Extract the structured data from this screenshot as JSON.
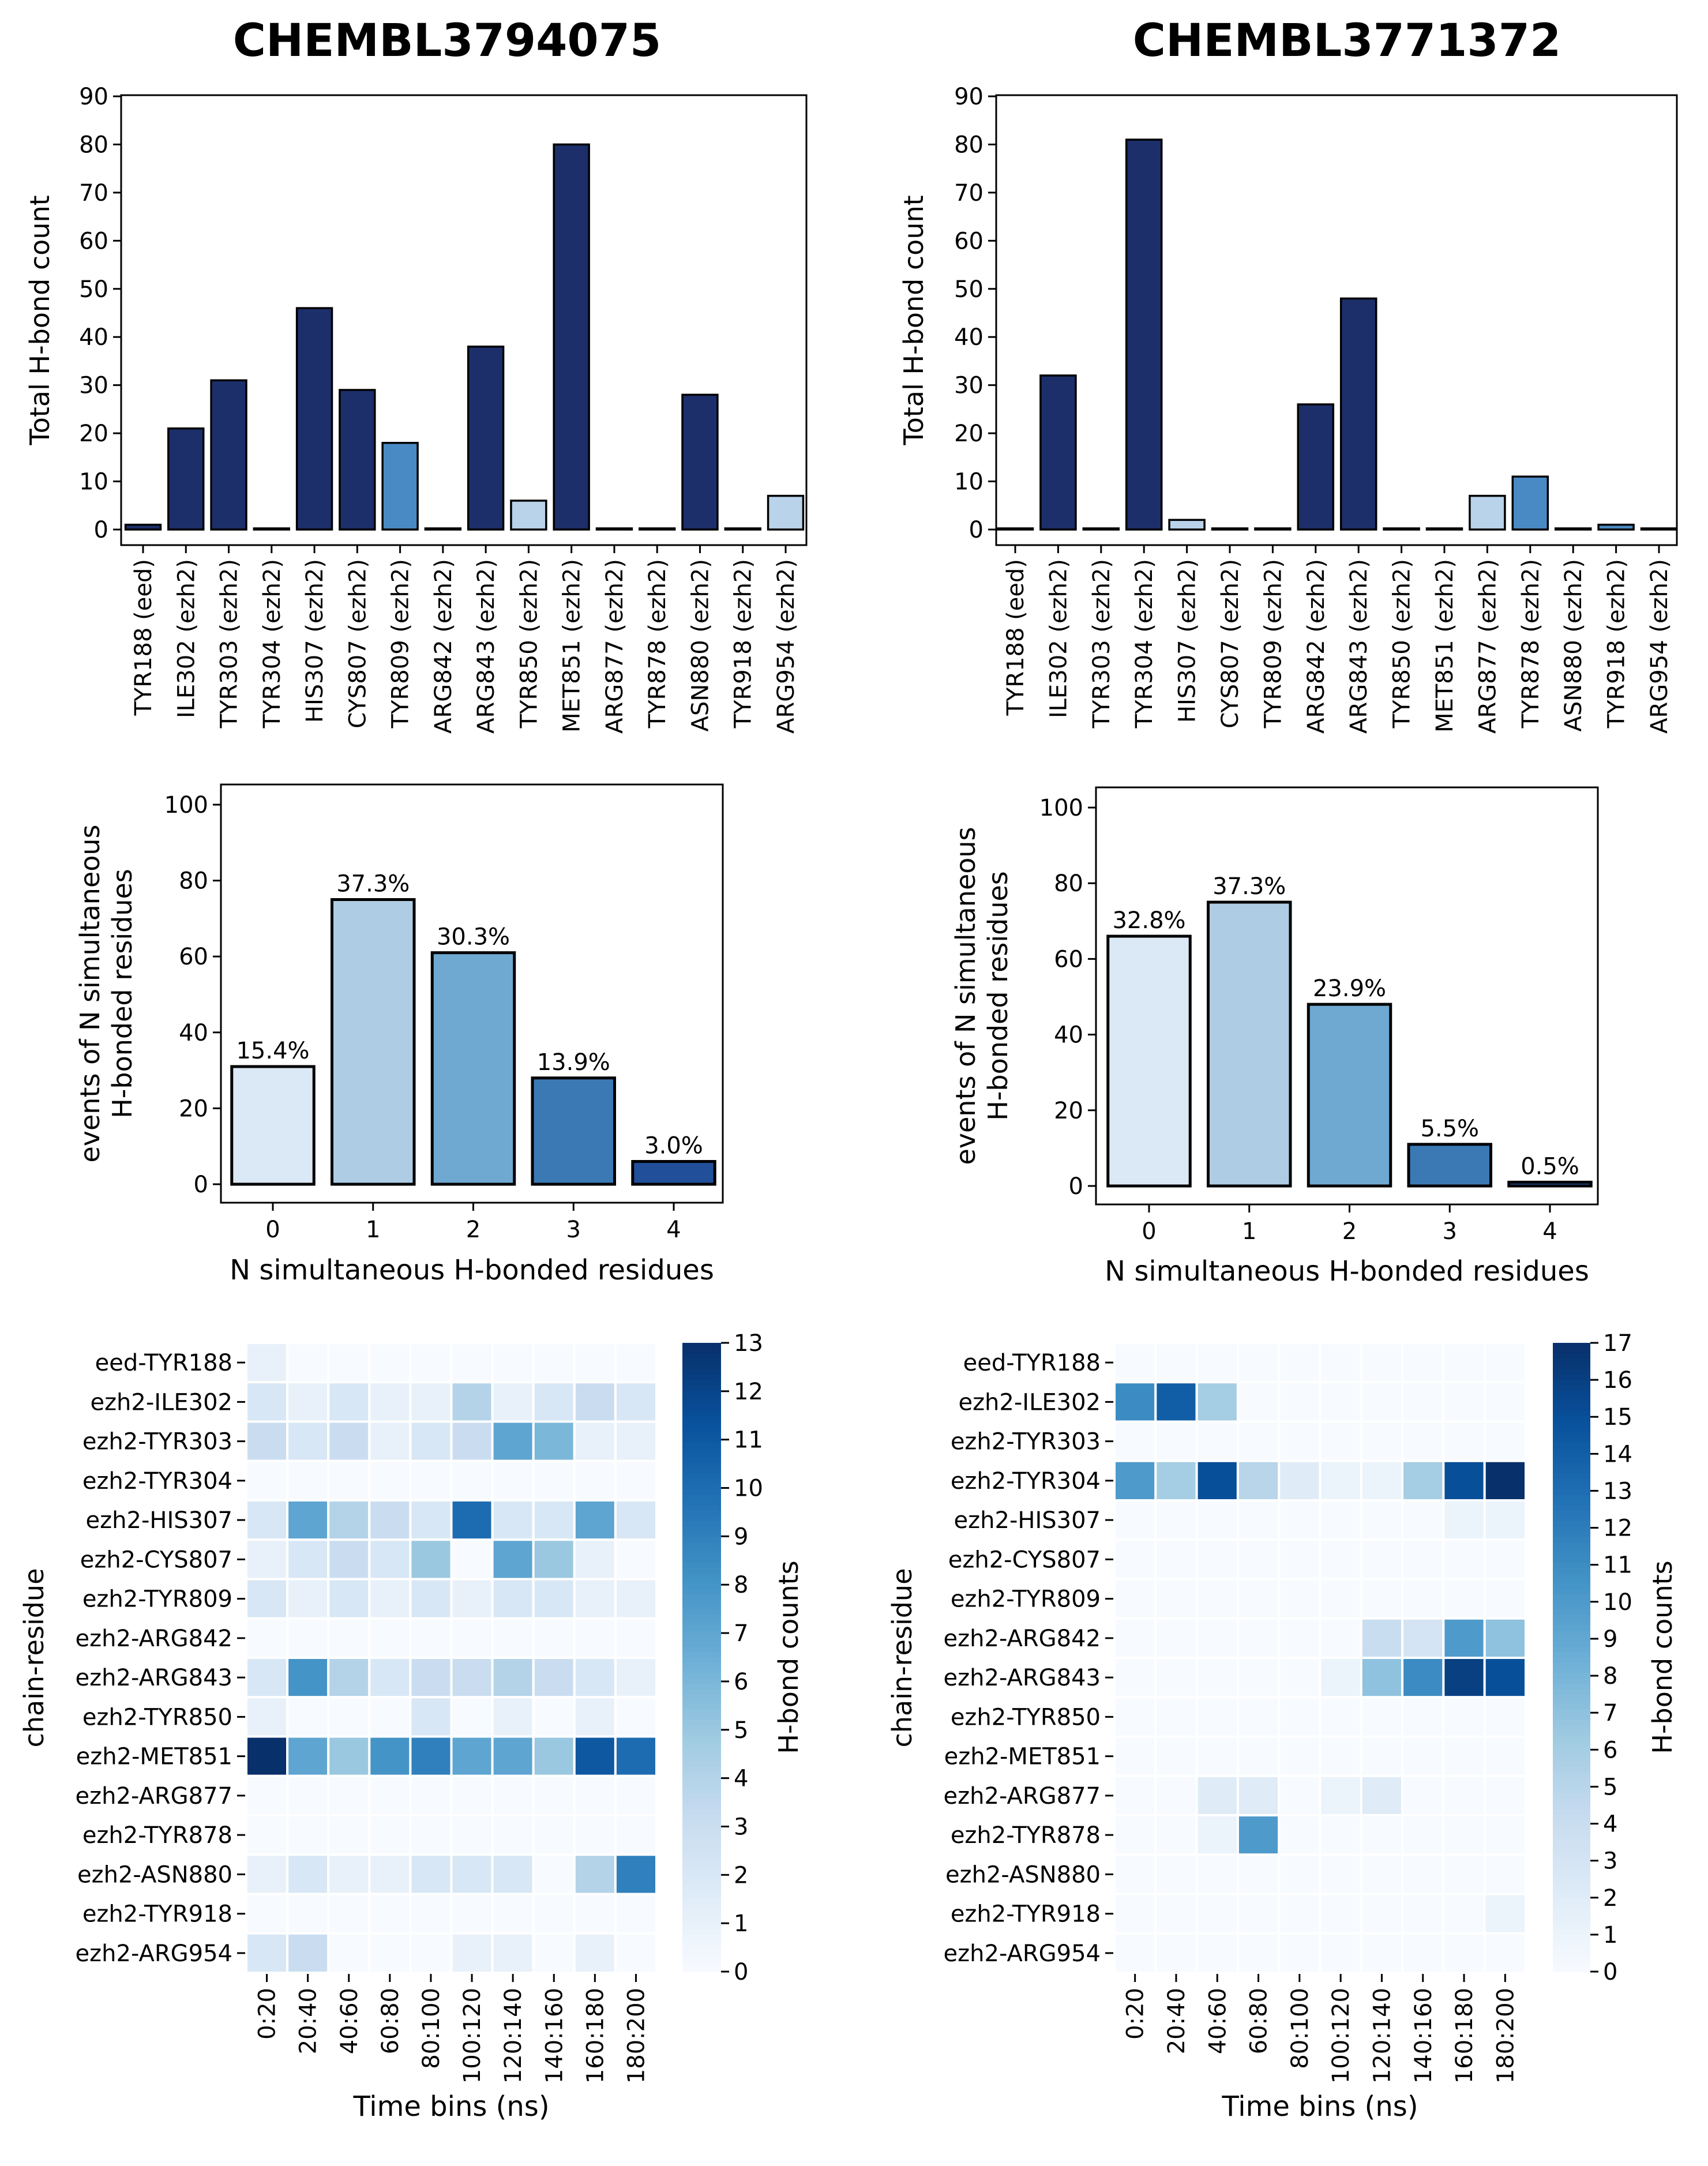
{
  "titles": [
    "CHEMBL3794075",
    "CHEMBL3771372"
  ],
  "chart_data": [
    {
      "type": "bar",
      "panel": "left-top",
      "ylabel": "Total H-bond count",
      "ylim": [
        0,
        90
      ],
      "yticks": [
        0,
        10,
        20,
        30,
        40,
        50,
        60,
        70,
        80,
        90
      ],
      "categories": [
        "TYR188 (eed)",
        "ILE302 (ezh2)",
        "TYR303 (ezh2)",
        "TYR304 (ezh2)",
        "HIS307 (ezh2)",
        "CYS807 (ezh2)",
        "TYR809 (ezh2)",
        "ARG842 (ezh2)",
        "ARG843 (ezh2)",
        "TYR850 (ezh2)",
        "MET851 (ezh2)",
        "ARG877 (ezh2)",
        "TYR878 (ezh2)",
        "ASN880 (ezh2)",
        "TYR918 (ezh2)",
        "ARG954 (ezh2)"
      ],
      "values": [
        1,
        21,
        31,
        0,
        46,
        29,
        18,
        0,
        38,
        6,
        80,
        0,
        0,
        28,
        0,
        7
      ],
      "colors": [
        "#1c2f6b",
        "#1c2f6b",
        "#1c2f6b",
        "#1c2f6b",
        "#1c2f6b",
        "#1c2f6b",
        "#4a8ac4",
        "#1c2f6b",
        "#1c2f6b",
        "#b8d3ea",
        "#1c2f6b",
        "#1c2f6b",
        "#1c2f6b",
        "#1c2f6b",
        "#1c2f6b",
        "#b8d3ea"
      ]
    },
    {
      "type": "bar",
      "panel": "right-top",
      "ylabel": "Total H-bond count",
      "ylim": [
        0,
        90
      ],
      "yticks": [
        0,
        10,
        20,
        30,
        40,
        50,
        60,
        70,
        80,
        90
      ],
      "categories": [
        "TYR188 (eed)",
        "ILE302 (ezh2)",
        "TYR303 (ezh2)",
        "TYR304 (ezh2)",
        "HIS307 (ezh2)",
        "CYS807 (ezh2)",
        "TYR809 (ezh2)",
        "ARG842 (ezh2)",
        "ARG843 (ezh2)",
        "TYR850 (ezh2)",
        "MET851 (ezh2)",
        "ARG877 (ezh2)",
        "TYR878 (ezh2)",
        "ASN880 (ezh2)",
        "TYR918 (ezh2)",
        "ARG954 (ezh2)"
      ],
      "values": [
        0,
        32,
        0,
        81,
        2,
        0,
        0,
        26,
        48,
        0,
        0,
        7,
        11,
        0,
        1,
        0
      ],
      "colors": [
        "#1c2f6b",
        "#1c2f6b",
        "#1c2f6b",
        "#1c2f6b",
        "#b8d3ea",
        "#1c2f6b",
        "#1c2f6b",
        "#1c2f6b",
        "#1c2f6b",
        "#1c2f6b",
        "#1c2f6b",
        "#b8d3ea",
        "#4a8ac4",
        "#1c2f6b",
        "#4a8ac4",
        "#1c2f6b"
      ]
    },
    {
      "type": "bar",
      "panel": "left-middle",
      "xlabel": "N simultaneous H-bonded residues",
      "ylabel": [
        "events of N simultaneous",
        "H-bonded residues"
      ],
      "ylim": [
        0,
        105
      ],
      "yticks": [
        0,
        20,
        40,
        60,
        80,
        100
      ],
      "categories": [
        "0",
        "1",
        "2",
        "3",
        "4"
      ],
      "values": [
        31,
        75,
        61,
        28,
        6
      ],
      "labels": [
        "15.4%",
        "37.3%",
        "30.3%",
        "13.9%",
        "3.0%"
      ],
      "colors": [
        "#dbe8f5",
        "#aecde4",
        "#6fa9d1",
        "#3b79b5",
        "#214f99"
      ]
    },
    {
      "type": "bar",
      "panel": "right-middle",
      "xlabel": "N simultaneous H-bonded residues",
      "ylabel": [
        "events of N simultaneous",
        "H-bonded residues"
      ],
      "ylim": [
        0,
        105
      ],
      "yticks": [
        0,
        20,
        40,
        60,
        80,
        100
      ],
      "categories": [
        "0",
        "1",
        "2",
        "3",
        "4"
      ],
      "values": [
        66,
        75,
        48,
        11,
        1
      ],
      "labels": [
        "32.8%",
        "37.3%",
        "23.9%",
        "5.5%",
        "0.5%"
      ],
      "colors": [
        "#dbe8f5",
        "#aecde4",
        "#6fa9d1",
        "#3b79b5",
        "#214f99"
      ]
    },
    {
      "type": "heatmap",
      "panel": "left-bottom",
      "xlabel": "Time bins (ns)",
      "ylabel": "chain-residue",
      "colorbar_label": "H-bond counts",
      "vmin": 0,
      "vmax": 13,
      "cbar_ticks": [
        0,
        1,
        2,
        3,
        4,
        5,
        6,
        7,
        8,
        9,
        10,
        11,
        12,
        13
      ],
      "x": [
        "0:20",
        "20:40",
        "40:60",
        "60:80",
        "80:100",
        "100:120",
        "120:140",
        "140:160",
        "160:180",
        "180:200"
      ],
      "y": [
        "eed-TYR188",
        "ezh2-ILE302",
        "ezh2-TYR303",
        "ezh2-TYR304",
        "ezh2-HIS307",
        "ezh2-CYS807",
        "ezh2-TYR809",
        "ezh2-ARG842",
        "ezh2-ARG843",
        "ezh2-TYR850",
        "ezh2-MET851",
        "ezh2-ARG877",
        "ezh2-TYR878",
        "ezh2-ASN880",
        "ezh2-TYR918",
        "ezh2-ARG954"
      ],
      "values": [
        [
          1,
          0,
          0,
          0,
          0,
          0,
          0,
          0,
          0,
          0
        ],
        [
          2,
          1,
          2,
          1,
          1,
          4,
          1,
          2,
          3,
          2
        ],
        [
          3,
          2,
          3,
          1,
          2,
          3,
          7,
          6,
          1,
          1
        ],
        [
          0,
          0,
          0,
          0,
          0,
          0,
          0,
          0,
          0,
          0
        ],
        [
          2,
          7,
          4,
          3,
          2,
          10,
          2,
          2,
          7,
          2
        ],
        [
          1,
          2,
          3,
          2,
          5,
          0,
          7,
          5,
          1,
          0
        ],
        [
          2,
          1,
          2,
          1,
          2,
          1,
          2,
          2,
          1,
          1
        ],
        [
          0,
          0,
          0,
          0,
          0,
          0,
          0,
          0,
          0,
          0
        ],
        [
          2,
          8,
          4,
          2,
          3,
          3,
          4,
          3,
          2,
          1
        ],
        [
          1,
          0,
          0,
          0,
          2,
          0,
          1,
          0,
          1,
          0
        ],
        [
          13,
          7,
          5,
          8,
          9,
          7,
          7,
          5,
          11,
          10
        ],
        [
          0,
          0,
          0,
          0,
          0,
          0,
          0,
          0,
          0,
          0
        ],
        [
          0,
          0,
          0,
          0,
          0,
          0,
          0,
          0,
          0,
          0
        ],
        [
          1,
          2,
          1,
          1,
          2,
          2,
          2,
          0,
          4,
          9
        ],
        [
          0,
          0,
          0,
          0,
          0,
          0,
          0,
          0,
          0,
          0
        ],
        [
          2,
          3,
          0,
          0,
          0,
          1,
          1,
          0,
          1,
          0
        ]
      ]
    },
    {
      "type": "heatmap",
      "panel": "right-bottom",
      "xlabel": "Time bins (ns)",
      "ylabel": "chain-residue",
      "colorbar_label": "H-bond counts",
      "vmin": 0,
      "vmax": 17,
      "cbar_ticks": [
        0,
        1,
        2,
        3,
        4,
        5,
        6,
        7,
        8,
        9,
        10,
        11,
        12,
        13,
        14,
        15,
        16,
        17
      ],
      "x": [
        "0:20",
        "20:40",
        "40:60",
        "60:80",
        "80:100",
        "100:120",
        "120:140",
        "140:160",
        "160:180",
        "180:200"
      ],
      "y": [
        "eed-TYR188",
        "ezh2-ILE302",
        "ezh2-TYR303",
        "ezh2-TYR304",
        "ezh2-HIS307",
        "ezh2-CYS807",
        "ezh2-TYR809",
        "ezh2-ARG842",
        "ezh2-ARG843",
        "ezh2-TYR850",
        "ezh2-MET851",
        "ezh2-ARG877",
        "ezh2-TYR878",
        "ezh2-ASN880",
        "ezh2-TYR918",
        "ezh2-ARG954"
      ],
      "values": [
        [
          0,
          0,
          0,
          0,
          0,
          0,
          0,
          0,
          0,
          0
        ],
        [
          11,
          14,
          6,
          0,
          0,
          0,
          0,
          0,
          0,
          0
        ],
        [
          0,
          0,
          0,
          0,
          0,
          0,
          0,
          0,
          0,
          0
        ],
        [
          10,
          6,
          15,
          5,
          2,
          1,
          1,
          6,
          15,
          18
        ],
        [
          0,
          0,
          0,
          0,
          0,
          0,
          0,
          0,
          1,
          1
        ],
        [
          0,
          0,
          0,
          0,
          0,
          0,
          0,
          0,
          0,
          0
        ],
        [
          0,
          0,
          0,
          0,
          0,
          0,
          0,
          0,
          0,
          0
        ],
        [
          0,
          0,
          0,
          0,
          0,
          0,
          4,
          3,
          10,
          7
        ],
        [
          0,
          0,
          0,
          0,
          0,
          1,
          7,
          11,
          16,
          15
        ],
        [
          0,
          0,
          0,
          0,
          0,
          0,
          0,
          0,
          0,
          0
        ],
        [
          0,
          0,
          0,
          0,
          0,
          0,
          0,
          0,
          0,
          0
        ],
        [
          0,
          0,
          2,
          2,
          0,
          1,
          2,
          0,
          0,
          0
        ],
        [
          0,
          0,
          1,
          10,
          0,
          0,
          0,
          0,
          0,
          0
        ],
        [
          0,
          0,
          0,
          0,
          0,
          0,
          0,
          0,
          0,
          0
        ],
        [
          0,
          0,
          0,
          0,
          0,
          0,
          0,
          0,
          0,
          1
        ],
        [
          0,
          0,
          0,
          0,
          0,
          0,
          0,
          0,
          0,
          0
        ]
      ]
    }
  ]
}
